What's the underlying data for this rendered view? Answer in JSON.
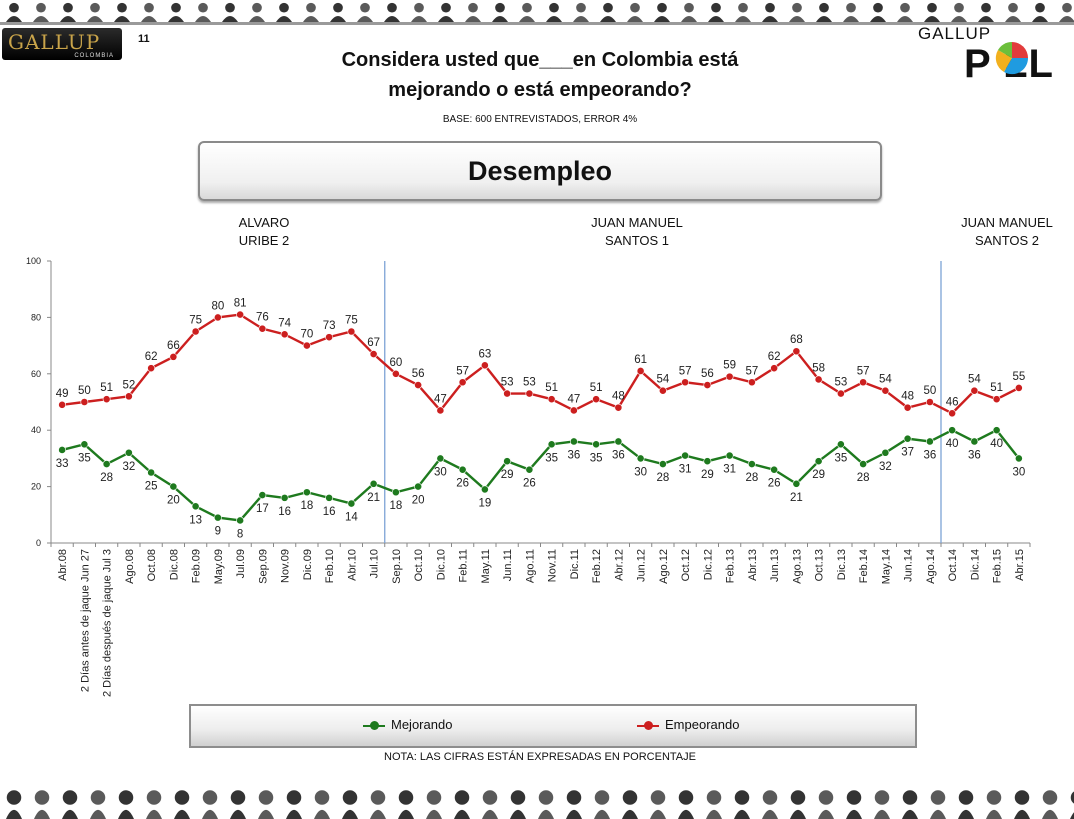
{
  "header": {
    "logo_text": "GALLUP",
    "logo_sub": "COLOMBIA",
    "page_number": "11",
    "brand_top": "GALLUP",
    "brand_word": "P LL",
    "title_line1": "Considera usted que___en Colombia está",
    "title_line2": "mejorando o está empeorando?",
    "base": "BASE: 600 ENTREVISTADOS, ERROR 4%",
    "topic": "Desempleo"
  },
  "periods": [
    {
      "line1": "ALVARO",
      "line2": "URIBE 2"
    },
    {
      "line1": "JUAN MANUEL",
      "line2": "SANTOS 1"
    },
    {
      "line1": "JUAN MANUEL",
      "line2": "SANTOS 2"
    }
  ],
  "footer": {
    "nota": "NOTA: LAS CIFRAS ESTÁN EXPRESADAS EN PORCENTAJE"
  },
  "colors": {
    "mejorando": "#1e7a1e",
    "empeorando": "#cc1f1f",
    "divider": "#7da3d6",
    "axis": "#888888"
  },
  "chart_data": {
    "type": "line",
    "title": "Desempleo",
    "xlabel": "",
    "ylabel": "",
    "ylim": [
      0,
      100
    ],
    "yticks": [
      0,
      20,
      40,
      60,
      80,
      100
    ],
    "grid": false,
    "legend_position": "bottom",
    "categories": [
      "Abr.08",
      "2 Días antes de jaque Jun 27",
      "2 Días después de jaque Jul 3",
      "Ago.08",
      "Oct.08",
      "Dic.08",
      "Feb.09",
      "May.09",
      "Jul.09",
      "Sep.09",
      "Nov.09",
      "Dic.09",
      "Feb.10",
      "Abr.10",
      "Jul.10",
      "Sep.10",
      "Oct.10",
      "Dic.10",
      "Feb.11",
      "May.11",
      "Jun.11",
      "Ago.11",
      "Nov.11",
      "Dic.11",
      "Feb.12",
      "Abr.12",
      "Jun.12",
      "Ago.12",
      "Oct.12",
      "Dic.12",
      "Feb.13",
      "Abr.13",
      "Jun.13",
      "Ago.13",
      "Oct.13",
      "Dic.13",
      "Feb.14",
      "May.14",
      "Jun.14",
      "Ago.14",
      "Oct.14",
      "Dic.14",
      "Feb.15",
      "Abr.15"
    ],
    "series": [
      {
        "name": "Mejorando",
        "values": [
          33,
          35,
          28,
          32,
          25,
          20,
          13,
          9,
          8,
          17,
          16,
          18,
          16,
          14,
          21,
          18,
          20,
          30,
          26,
          19,
          29,
          26,
          35,
          36,
          35,
          36,
          30,
          28,
          31,
          29,
          31,
          28,
          26,
          21,
          29,
          35,
          28,
          32,
          37,
          36,
          40,
          36,
          40,
          30
        ]
      },
      {
        "name": "Empeorando",
        "values": [
          49,
          50,
          51,
          52,
          62,
          66,
          75,
          80,
          81,
          76,
          74,
          70,
          73,
          75,
          67,
          60,
          56,
          47,
          57,
          63,
          53,
          53,
          51,
          47,
          51,
          48,
          61,
          54,
          57,
          56,
          59,
          57,
          62,
          68,
          58,
          53,
          57,
          54,
          48,
          50,
          46,
          54,
          51,
          55
        ]
      }
    ],
    "dividers_after_category": [
      "Jul.10",
      "Ago.14"
    ]
  }
}
